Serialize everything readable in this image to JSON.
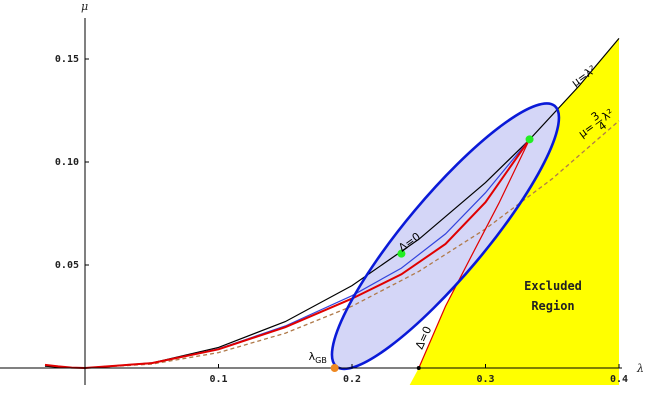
{
  "chart_data": {
    "type": "line",
    "title": "",
    "xlabel": "λ",
    "ylabel": "μ",
    "xlim": [
      -0.03,
      0.4
    ],
    "ylim": [
      -0.006,
      0.163
    ],
    "xticks": [
      0.1,
      0.2,
      0.3,
      0.4
    ],
    "yticks": [
      0.05,
      0.1,
      0.15
    ],
    "xtick_labels": [
      "0.1",
      "0.2",
      "0.3",
      "0.4"
    ],
    "ytick_labels": [
      "0.05",
      "0.10",
      "0.15"
    ],
    "grid": false,
    "colors": {
      "excluded_region": "#ffff00",
      "ellipse_fill": "#d4d6f7",
      "ellipse_stroke": "#0a1ad8",
      "parabola": "#000000",
      "three_quarter_curve": "#b07a4a",
      "red_curve": "#e00000",
      "blue_curve": "#3344dd",
      "green_point": "#22ee22",
      "orange_point": "#ee8822"
    },
    "series": [
      {
        "x": [
          -0.03,
          -0.02,
          -0.01,
          0.0,
          0.05,
          0.1,
          0.15,
          0.2,
          0.25,
          0.3,
          0.333,
          0.37,
          0.4
        ],
        "y": [
          0.0009,
          0.0004,
          0.0001,
          0.0,
          0.0025,
          0.01,
          0.0225,
          0.04,
          0.0625,
          0.09,
          0.1109,
          0.1369,
          0.16
        ]
      },
      {
        "x": [
          0.0,
          0.05,
          0.1,
          0.15,
          0.2,
          0.25,
          0.3,
          0.35,
          0.4
        ],
        "y": [
          0.0,
          0.0019,
          0.0075,
          0.0169,
          0.03,
          0.0469,
          0.0675,
          0.0919,
          0.12
        ]
      },
      {
        "x": [
          -0.03,
          -0.02,
          -0.01,
          0.0,
          0.05,
          0.1,
          0.15,
          0.2,
          0.237,
          0.27,
          0.3,
          0.333
        ],
        "y": [
          0.0015,
          0.0008,
          0.0002,
          0.0,
          0.0024,
          0.0091,
          0.0198,
          0.0337,
          0.0455,
          0.0602,
          0.0805,
          0.111
        ]
      },
      {
        "x": [
          0.0,
          0.05,
          0.1,
          0.15,
          0.2,
          0.237,
          0.27,
          0.3,
          0.333
        ],
        "y": [
          0.0,
          0.0024,
          0.0093,
          0.0204,
          0.0351,
          0.0485,
          0.0651,
          0.0851,
          0.111
        ]
      },
      {
        "x": [
          0.25,
          0.27,
          0.29,
          0.31,
          0.333
        ],
        "y": [
          0.0,
          0.03,
          0.055,
          0.08,
          0.111
        ]
      }
    ],
    "excluded_region": {
      "boundary_x": [
        0.25,
        0.27,
        0.29,
        0.31,
        0.333,
        0.37,
        0.4
      ],
      "boundary_y": [
        0.0,
        0.03,
        0.055,
        0.08,
        0.111,
        0.1369,
        0.16
      ],
      "label_line1": "Excluded",
      "label_line2": "Region"
    },
    "ellipse": {
      "center": [
        0.27,
        0.064
      ],
      "semi_axes": [
        0.025,
        0.1
      ],
      "rotation_deg": 40,
      "note": ""
    },
    "points": [
      {
        "x": 0.237,
        "y": 0.0555,
        "label": "",
        "color": "green"
      },
      {
        "x": 0.333,
        "y": 0.111,
        "label": "",
        "color": "green"
      },
      {
        "x": 0.187,
        "y": 0.0,
        "label": "λ",
        "label_sub": "GB",
        "color": "orange"
      },
      {
        "x": 0.25,
        "y": 0.0,
        "label": "",
        "color": "black"
      }
    ],
    "annotations": {
      "parabola_label": "μ=λ²",
      "three_quarter_label_mu": "μ=",
      "three_quarter_num": "3",
      "three_quarter_den": "4",
      "three_quarter_tail": "λ²",
      "delta_upper": "Δ=0",
      "delta_lower": "Δ=0"
    }
  }
}
